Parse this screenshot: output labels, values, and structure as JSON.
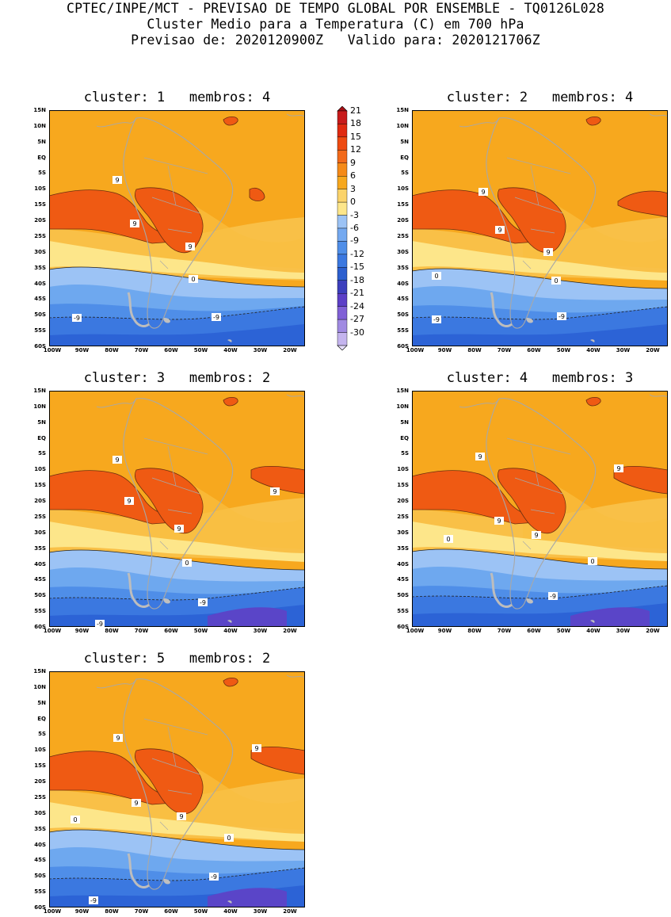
{
  "header": {
    "line1": "CPTEC/INPE/MCT - PREVISAO DE TEMPO GLOBAL POR ENSEMBLE - TQ0126L028",
    "line2": "Cluster Medio para a Temperatura (C) em 700 hPa",
    "line3": "Previsao de: 2020120900Z   Valido para: 2020121706Z"
  },
  "lat_labels": [
    "15N",
    "10N",
    "5N",
    "EQ",
    "5S",
    "10S",
    "15S",
    "20S",
    "25S",
    "30S",
    "35S",
    "40S",
    "45S",
    "50S",
    "55S",
    "60S"
  ],
  "lon_labels": [
    "100W",
    "90W",
    "80W",
    "70W",
    "60W",
    "50W",
    "40W",
    "30W",
    "20W"
  ],
  "colorbar": {
    "labels": [
      "21",
      "18",
      "15",
      "12",
      "9",
      "6",
      "3",
      "0",
      "-3",
      "-6",
      "-9",
      "-12",
      "-15",
      "-18",
      "-21",
      "-24",
      "-27",
      "-30"
    ],
    "colors": [
      "#a50f15",
      "#c81b1b",
      "#e02a10",
      "#ee4a10",
      "#f26a1a",
      "#f58a18",
      "#f7a81e",
      "#fbd36a",
      "#fde68a",
      "#9cc3f5",
      "#74a9f0",
      "#4f8ee8",
      "#3b78e0",
      "#2c5fcf",
      "#3c3fbd",
      "#5c3fc7",
      "#8060d6",
      "#a08ae2",
      "#c4b4ee",
      "#e6defa"
    ]
  },
  "panels": [
    {
      "title": "cluster: 1   membros: 4",
      "contour_labels": [
        "9",
        "9",
        "9",
        "0",
        "-9",
        "-9"
      ]
    },
    {
      "title": "cluster: 2   membros: 4",
      "contour_labels": [
        "9",
        "9",
        "9",
        "0",
        "0",
        "-9",
        "-9"
      ]
    },
    {
      "title": "cluster: 3   membros: 2",
      "contour_labels": [
        "9",
        "9",
        "9",
        "9",
        "0",
        "-9",
        "-9"
      ]
    },
    {
      "title": "cluster: 4   membros: 3",
      "contour_labels": [
        "9",
        "9",
        "9",
        "9",
        "0",
        "0",
        "-9"
      ]
    },
    {
      "title": "cluster: 5   membros: 2",
      "contour_labels": [
        "9",
        "9",
        "9",
        "9",
        "0",
        "0",
        "-9",
        "-9"
      ]
    }
  ]
}
